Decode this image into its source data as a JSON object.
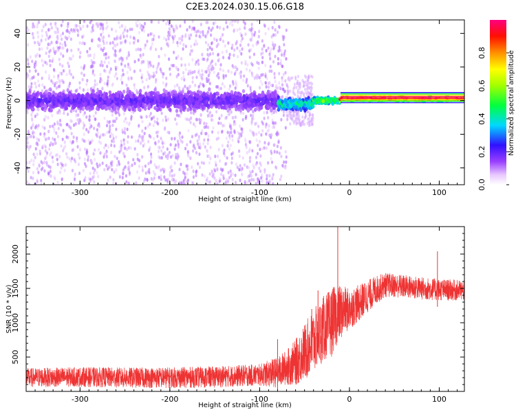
{
  "title": "C2E3.2024.030.15.06.G18",
  "chart_data": [
    {
      "type": "heatmap",
      "xlabel": "Height of straight line (km)",
      "ylabel": "Frequency (Hz)",
      "xlim": [
        -360,
        128
      ],
      "ylim": [
        -50,
        48
      ],
      "x_ticks": [
        -300,
        -200,
        -100,
        0,
        100
      ],
      "x_tick_labels": [
        "-300",
        "-200",
        "-100",
        "0",
        "100"
      ],
      "y_ticks": [
        -40,
        -20,
        0,
        20,
        40
      ],
      "y_tick_labels": [
        "-40",
        "-20",
        "0",
        "20",
        "40"
      ],
      "colorbar": {
        "label": "Normalized spectral amplitude",
        "range": [
          0,
          1
        ],
        "ticks": [
          0.0,
          0.2,
          0.4,
          0.6,
          0.8
        ],
        "tick_labels": [
          "0.0",
          "0.2",
          "0.4",
          "0.6",
          "0.8"
        ],
        "colormap": "rainbow (white-violet-blue-cyan-green-yellow-orange-red-magenta)"
      },
      "band": {
        "description": "Dominant spectral line near 0 Hz",
        "segments": [
          {
            "x_start": -360,
            "x_end": -80,
            "center_hz": 0,
            "half_width_hz": 6,
            "amplitude": 0.2
          },
          {
            "x_start": -80,
            "x_end": -40,
            "center_hz": -2,
            "half_width_hz": 4,
            "amplitude": 0.45
          },
          {
            "x_start": -40,
            "x_end": -10,
            "center_hz": 0,
            "half_width_hz": 2,
            "amplitude": 0.6
          },
          {
            "x_start": -10,
            "x_end": 128,
            "center_hz": 1,
            "half_width_hz": 1.5,
            "amplitude": 0.95
          }
        ],
        "scatter_extent_hz": {
          "x_below_minus_70": [
            -50,
            48
          ],
          "x_minus_70_to_minus_40": [
            -15,
            15
          ]
        }
      }
    },
    {
      "type": "line",
      "xlabel": "Height of straight line (km)",
      "ylabel": "SNR (10 * v/v)",
      "xlim": [
        -360,
        128
      ],
      "ylim": [
        0,
        2400
      ],
      "x_ticks": [
        -300,
        -200,
        -100,
        0,
        100
      ],
      "x_tick_labels": [
        "-300",
        "-200",
        "-100",
        "0",
        "100"
      ],
      "y_ticks": [
        500,
        1000,
        1500,
        2000
      ],
      "y_tick_labels": [
        "500",
        "1000",
        "1500",
        "2000"
      ],
      "series": [
        {
          "color": "#ee3333",
          "x": [
            -360,
            -300,
            -250,
            -200,
            -150,
            -100,
            -80,
            -60,
            -45,
            -30,
            -20,
            -15,
            -10,
            0,
            10,
            20,
            30,
            40,
            60,
            80,
            100,
            128
          ],
          "y": [
            200,
            210,
            200,
            200,
            210,
            240,
            280,
            420,
            650,
            900,
            1000,
            1100,
            1150,
            1200,
            1280,
            1380,
            1480,
            1550,
            1530,
            1500,
            1480,
            1470
          ]
        }
      ],
      "noise_amplitude": [
        {
          "x": -360,
          "amp": 140
        },
        {
          "x": -100,
          "amp": 160
        },
        {
          "x": -70,
          "amp": 260
        },
        {
          "x": -45,
          "amp": 450
        },
        {
          "x": -20,
          "amp": 500
        },
        {
          "x": 0,
          "amp": 300
        },
        {
          "x": 40,
          "amp": 180
        },
        {
          "x": 128,
          "amp": 150
        }
      ],
      "spikes": [
        {
          "x": -80,
          "y": 760
        },
        {
          "x": -42,
          "y": 1200
        },
        {
          "x": -35,
          "y": 1470
        },
        {
          "x": -13,
          "y": 2400
        },
        {
          "x": 98,
          "y": 2040
        }
      ]
    }
  ]
}
